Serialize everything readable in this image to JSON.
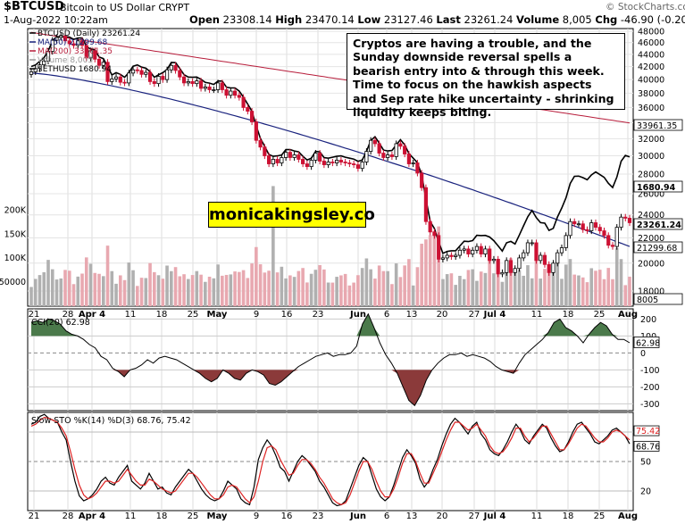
{
  "header": {
    "symbol": "$BTCUSD",
    "name": "Bitcoin to US Dollar  CRYPT",
    "date": "1-Aug-2022 10:22am",
    "open_label": "Open",
    "open": "23308.14",
    "high_label": "High",
    "high": "23470.14",
    "low_label": "Low",
    "low": "23127.46",
    "last_label": "Last",
    "last": "23261.24",
    "volume_label": "Volume",
    "volume": "8,005",
    "chg_label": "Chg",
    "chg": "-46.90 (-0.20%)",
    "watermark": "© StockCharts.com"
  },
  "annotation": "Cryptos are having a trouble, and the Sunday downside reversal spells a bearish entry into & through this week. Time to focus on the hawkish aspects and Sep rate hike uncertainty - shrinking liquidity keeps biting.",
  "site_label": "monicakingsley.co",
  "colors": {
    "up": "#000000",
    "down": "#cc1133",
    "ma50": "#1a237e",
    "ma200": "#b71c3a",
    "eth": "#000000",
    "cci_pos": "#4b7a4b",
    "cci_neg": "#8b3a3a",
    "sto_k": "#000000",
    "sto_d": "#dd2222",
    "vol_up": "#b0b0b0",
    "vol_down": "#e8a8b0"
  },
  "chart_data": [
    {
      "type": "candlestick",
      "title": "BTCUSD (Daily) 23261.24",
      "legend": [
        {
          "name": "BTCUSD (Daily)",
          "value": "23261.24"
        },
        {
          "name": "MA(50)",
          "value": "21299.68"
        },
        {
          "name": "MA(200)",
          "value": "33961.35"
        },
        {
          "name": "Volume",
          "value": "8,005"
        },
        {
          "name": "$ETHUSD",
          "value": "1680.94"
        }
      ],
      "x_tick_labels": [
        "21",
        "28",
        "Apr 4",
        "11",
        "18",
        "25",
        "May",
        "9",
        "16",
        "23",
        "Jun",
        "6",
        "13",
        "20",
        "27",
        "Jul 4",
        "11",
        "18",
        "25",
        "Aug"
      ],
      "y_ticks": [
        18000,
        20000,
        22000,
        24000,
        26000,
        28000,
        30000,
        32000,
        34000,
        36000,
        38000,
        40000,
        42000,
        44000,
        46000,
        48000
      ],
      "y_scale": "log",
      "ylim": [
        17000,
        48500
      ],
      "price_flags": [
        {
          "label": "33961.35"
        },
        {
          "label": "1680.94"
        },
        {
          "label": "23261.24"
        },
        {
          "label": "21299.68"
        },
        {
          "label": "8005"
        }
      ],
      "volume_ticks": [
        "200K",
        "150K",
        "100K",
        "50000"
      ],
      "volume_ticks_values": [
        200000,
        150000,
        100000,
        50000
      ],
      "closes": [
        41200,
        41700,
        42300,
        42900,
        44500,
        46400,
        46900,
        47200,
        46300,
        45800,
        45500,
        46300,
        45500,
        43400,
        44600,
        43200,
        42200,
        42700,
        39700,
        40100,
        40400,
        39600,
        39500,
        41000,
        41500,
        41400,
        40800,
        41100,
        39700,
        39400,
        40500,
        40000,
        41500,
        42200,
        41400,
        40400,
        39500,
        39700,
        39400,
        39800,
        38700,
        38900,
        38500,
        38500,
        39500,
        38500,
        37700,
        38300,
        37700,
        37400,
        36000,
        35500,
        34100,
        31800,
        31000,
        30000,
        29100,
        29600,
        29200,
        29800,
        30400,
        29800,
        30100,
        29600,
        29100,
        28800,
        29500,
        30300,
        29400,
        29000,
        29300,
        29200,
        29500,
        29300,
        29200,
        29100,
        29000,
        28600,
        29300,
        30500,
        31800,
        31400,
        30300,
        29800,
        30100,
        29900,
        31400,
        31100,
        30200,
        29100,
        29200,
        28100,
        26600,
        23400,
        22500,
        22200,
        20300,
        20400,
        20600,
        20500,
        20600,
        21000,
        21100,
        20700,
        21000,
        21300,
        20700,
        21100,
        20200,
        20300,
        19200,
        19300,
        20200,
        19300,
        19600,
        20400,
        20800,
        21600,
        21600,
        20200,
        20600,
        19900,
        19300,
        20000,
        20800,
        21200,
        22200,
        23400,
        23200,
        23200,
        22700,
        22600,
        23300,
        22900,
        22600,
        22200,
        21400,
        21300,
        22900,
        23800,
        23700,
        23300
      ]
    },
    {
      "type": "line",
      "title": "CCI(20) 62.98",
      "y_ticks": [
        -300,
        -200,
        -100,
        0,
        100,
        200
      ],
      "ylim": [
        -340,
        260
      ],
      "last": "62.98",
      "values": [
        180,
        190,
        180,
        200,
        190,
        170,
        130,
        110,
        100,
        80,
        50,
        30,
        -20,
        -40,
        -90,
        -110,
        -140,
        -100,
        -90,
        -70,
        -40,
        -60,
        -30,
        -20,
        -30,
        -40,
        -60,
        -80,
        -100,
        -120,
        -150,
        -170,
        -150,
        -100,
        -120,
        -150,
        -160,
        -120,
        -100,
        -110,
        -130,
        -180,
        -190,
        -170,
        -140,
        -110,
        -80,
        -60,
        -40,
        -20,
        -10,
        0,
        -20,
        -10,
        -10,
        0,
        40,
        170,
        230,
        150,
        60,
        -10,
        -60,
        -120,
        -200,
        -280,
        -310,
        -250,
        -160,
        -100,
        -60,
        -30,
        -10,
        -10,
        0,
        -20,
        -10,
        -20,
        -30,
        -50,
        -80,
        -100,
        -110,
        -120,
        -60,
        -10,
        20,
        50,
        80,
        120,
        180,
        200,
        150,
        130,
        100,
        60,
        110,
        150,
        180,
        160,
        110,
        80,
        80,
        60
      ]
    },
    {
      "type": "line",
      "title": "Slow STO %K(14) %D(3) 68.76, 75.42",
      "y_ticks": [
        20,
        50,
        80
      ],
      "ylim": [
        0,
        100
      ],
      "series": [
        {
          "name": "%K(14)",
          "last": "68.76",
          "values": [
            88,
            90,
            96,
            98,
            94,
            92,
            90,
            80,
            72,
            50,
            30,
            15,
            10,
            12,
            16,
            22,
            30,
            34,
            28,
            26,
            34,
            40,
            46,
            30,
            26,
            22,
            28,
            38,
            30,
            22,
            24,
            18,
            16,
            24,
            30,
            36,
            42,
            38,
            30,
            22,
            16,
            12,
            10,
            12,
            20,
            30,
            26,
            22,
            12,
            8,
            6,
            24,
            52,
            64,
            72,
            66,
            56,
            44,
            40,
            30,
            40,
            50,
            56,
            52,
            46,
            40,
            30,
            24,
            16,
            8,
            5,
            6,
            10,
            22,
            34,
            46,
            54,
            50,
            36,
            22,
            14,
            10,
            14,
            26,
            40,
            54,
            62,
            56,
            48,
            32,
            24,
            30,
            42,
            52,
            66,
            78,
            88,
            94,
            90,
            84,
            78,
            86,
            90,
            78,
            72,
            62,
            58,
            56,
            62,
            70,
            80,
            88,
            82,
            72,
            68,
            76,
            82,
            88,
            84,
            74,
            66,
            60,
            62,
            70,
            80,
            88,
            90,
            84,
            78,
            70,
            68,
            72,
            76,
            82,
            84,
            80,
            76,
            68
          ]
        },
        {
          "name": "%D(3)",
          "last": "75.42",
          "values": [
            86,
            88,
            92,
            95,
            94,
            92,
            90,
            84,
            76,
            60,
            42,
            26,
            16,
            12,
            14,
            18,
            24,
            30,
            30,
            28,
            30,
            36,
            42,
            36,
            30,
            26,
            26,
            32,
            30,
            26,
            22,
            20,
            18,
            20,
            26,
            32,
            38,
            38,
            34,
            28,
            22,
            16,
            12,
            12,
            16,
            24,
            26,
            24,
            18,
            12,
            8,
            14,
            30,
            50,
            64,
            66,
            62,
            52,
            44,
            36,
            38,
            46,
            52,
            52,
            48,
            42,
            34,
            28,
            20,
            12,
            8,
            6,
            8,
            16,
            28,
            40,
            50,
            50,
            42,
            30,
            20,
            14,
            14,
            22,
            34,
            48,
            58,
            58,
            50,
            38,
            28,
            28,
            38,
            48,
            60,
            72,
            82,
            90,
            90,
            86,
            82,
            84,
            88,
            82,
            76,
            66,
            60,
            58,
            60,
            66,
            74,
            84,
            84,
            76,
            70,
            74,
            80,
            86,
            86,
            78,
            70,
            62,
            62,
            68,
            76,
            84,
            88,
            86,
            80,
            74,
            70,
            70,
            74,
            80,
            82,
            80,
            76,
            72
          ]
        }
      ]
    }
  ]
}
